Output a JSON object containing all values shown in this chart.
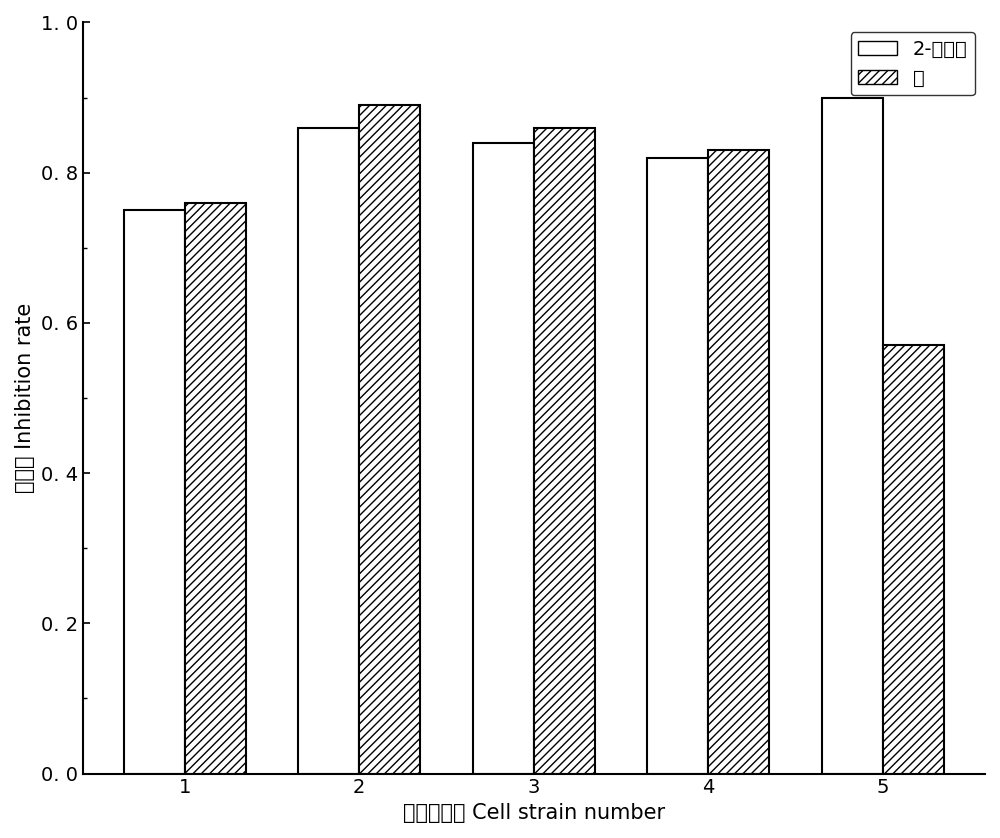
{
  "categories": [
    1,
    2,
    3,
    4,
    5
  ],
  "series1_label": "2-萊丁酸",
  "series2_label": "萊",
  "series1_values": [
    0.75,
    0.86,
    0.84,
    0.82,
    0.9
  ],
  "series2_values": [
    0.76,
    0.89,
    0.86,
    0.83,
    0.57
  ],
  "series1_color": "white",
  "series2_color": "white",
  "series1_hatch": "",
  "series2_hatch": "////",
  "bar_edgecolor": "black",
  "xlabel": "细胞株编号 Cell strain number",
  "ylabel": "抑制率 Inhibition rate",
  "ylim": [
    0.0,
    1.0
  ],
  "yticks": [
    0.0,
    0.2,
    0.4,
    0.6,
    0.8,
    1.0
  ],
  "ytick_labels": [
    "0. 0",
    "0. 2",
    "0. 4",
    "0. 6",
    "0. 8",
    "1. 0"
  ],
  "bar_width": 0.35,
  "axis_fontsize": 15,
  "tick_fontsize": 14,
  "legend_fontsize": 14,
  "background_color": "white",
  "legend_loc": "upper right"
}
